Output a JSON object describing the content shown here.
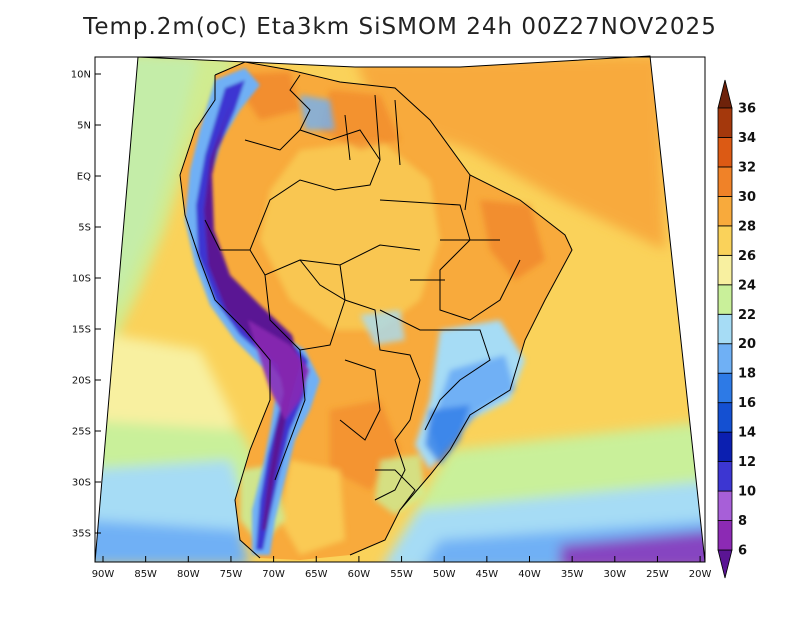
{
  "title": "Temp.2m(oC) Eta3km SiSMOM 24h 00Z27NOV2025",
  "map": {
    "variable": "Temp.2m(oC)",
    "model": "Eta3km SiSMOM",
    "forecast": "24h",
    "run": "00Z27NOV2025",
    "lat_ticks": [
      {
        "label": "10N",
        "lat": 10
      },
      {
        "label": "5N",
        "lat": 5
      },
      {
        "label": "EQ",
        "lat": 0
      },
      {
        "label": "5S",
        "lat": -5
      },
      {
        "label": "10S",
        "lat": -10
      },
      {
        "label": "15S",
        "lat": -15
      },
      {
        "label": "20S",
        "lat": -20
      },
      {
        "label": "25S",
        "lat": -25
      },
      {
        "label": "30S",
        "lat": -30
      },
      {
        "label": "35S",
        "lat": -35
      }
    ],
    "lon_ticks": [
      {
        "label": "90W",
        "lon": -90
      },
      {
        "label": "85W",
        "lon": -85
      },
      {
        "label": "80W",
        "lon": -80
      },
      {
        "label": "75W",
        "lon": -75
      },
      {
        "label": "70W",
        "lon": -70
      },
      {
        "label": "65W",
        "lon": -65
      },
      {
        "label": "60W",
        "lon": -60
      },
      {
        "label": "55W",
        "lon": -55
      },
      {
        "label": "50W",
        "lon": -50
      },
      {
        "label": "45W",
        "lon": -45
      },
      {
        "label": "40W",
        "lon": -40
      },
      {
        "label": "35W",
        "lon": -35
      },
      {
        "label": "30W",
        "lon": -30
      },
      {
        "label": "25W",
        "lon": -25
      },
      {
        "label": "20W",
        "lon": -20
      }
    ]
  },
  "colorbar": {
    "units": "oC",
    "levels": [
      6,
      8,
      10,
      12,
      14,
      16,
      18,
      20,
      22,
      24,
      26,
      28,
      30,
      32,
      34,
      36
    ],
    "colors": [
      "#5a1594",
      "#8c2ab4",
      "#a75fd8",
      "#3c36d2",
      "#0b1fb0",
      "#1450d2",
      "#2d7ae6",
      "#6fb0f5",
      "#a6dcf5",
      "#c9f09a",
      "#f8f0a0",
      "#fad25a",
      "#f8aa3c",
      "#f08228",
      "#dc5a14",
      "#a4380c",
      "#6e220a"
    ]
  }
}
